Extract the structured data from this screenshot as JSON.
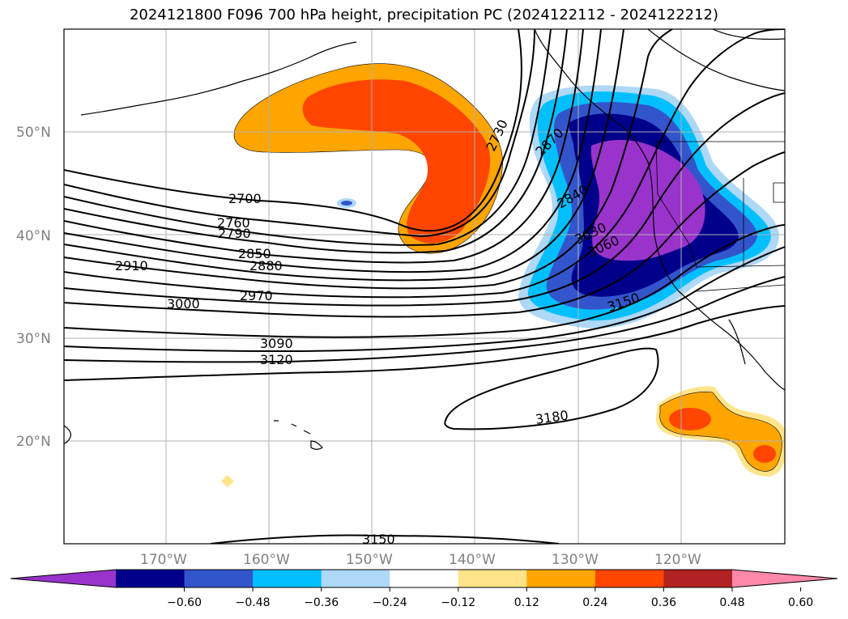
{
  "title": "2024121800 F096 700 hPa height, precipitation PC (2024122112 - 2024122212)",
  "lat_labels": [
    "50°N",
    "40°N",
    "30°N",
    "20°N"
  ],
  "lon_labels": [
    "170°W",
    "160°W",
    "150°W",
    "140°W",
    "130°W",
    "120°W"
  ],
  "contour_labels": [
    "2700",
    "2730",
    "2760",
    "2790",
    "2850",
    "2880",
    "2870",
    "2910",
    "2840",
    "2970",
    "3000",
    "3030",
    "3060",
    "3090",
    "3120",
    "3150",
    "3180",
    "3150"
  ],
  "colorbar": {
    "ticks": [
      "−0.60",
      "−0.48",
      "−0.36",
      "−0.24",
      "−0.12",
      "0.12",
      "0.24",
      "0.36",
      "0.48",
      "0.60"
    ],
    "colors": [
      "#9933cc",
      "#00008b",
      "#3355cc",
      "#00bfff",
      "#add8f6",
      "#ffffff",
      "#ffe48a",
      "#ffa500",
      "#ff4500",
      "#b22222",
      "#ff88aa"
    ]
  }
}
